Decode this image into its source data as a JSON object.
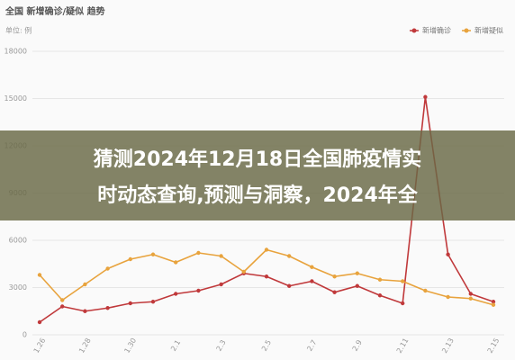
{
  "chart_data": {
    "type": "line",
    "title": "全国 新增确诊/疑似 趋势",
    "y_label": "单位: 例",
    "categories": [
      "1.26",
      null,
      "1.28",
      null,
      "1.30",
      null,
      "2.1",
      null,
      "2.3",
      null,
      "2.5",
      null,
      "2.7",
      null,
      "2.9",
      null,
      "2.11",
      null,
      "2.13",
      null,
      "2.15"
    ],
    "series": [
      {
        "name": "新增确诊",
        "color": "#c0393b",
        "values": [
          800,
          1800,
          1500,
          1700,
          2000,
          2100,
          2600,
          2800,
          3200,
          3900,
          3700,
          3100,
          3400,
          2700,
          3100,
          2500,
          2000,
          15100,
          5100,
          2600,
          2100
        ]
      },
      {
        "name": "新增疑似",
        "color": "#e8a33d",
        "values": [
          3800,
          2200,
          3200,
          4200,
          4800,
          5100,
          4600,
          5200,
          5000,
          4000,
          5400,
          5000,
          4300,
          3700,
          3900,
          3500,
          3400,
          2800,
          2400,
          2300,
          1900
        ]
      }
    ],
    "ylim": [
      0,
      18000
    ],
    "yticks": [
      0,
      3000,
      6000,
      9000,
      12000,
      15000,
      18000
    ],
    "grid": true,
    "legend": "top-right",
    "annotations": [
      "猜测2024年12月18日全国肺疫情实",
      "时动态查询,预测与洞察，2024年全"
    ]
  }
}
